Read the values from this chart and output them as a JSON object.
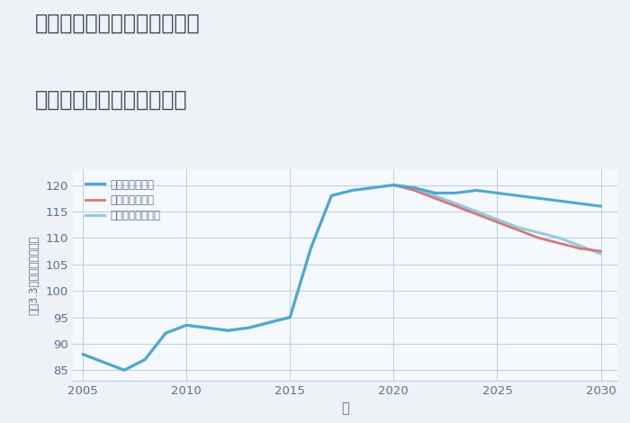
{
  "title_line1": "兵庫県姫路市野里東同心町の",
  "title_line2": "中古マンションの価格推移",
  "xlabel": "年",
  "ylabel": "坪（3.3㎡）単価（万円）",
  "background_color": "#eef2f7",
  "plot_bg_color": "#f5f8fc",
  "grid_color": "#b8cfe8",
  "title_color": "#3a4a5a",
  "tick_color": "#5a7090",
  "ylim": [
    83,
    123
  ],
  "xlim": [
    2004.5,
    2030.8
  ],
  "xticks": [
    2005,
    2010,
    2015,
    2020,
    2025,
    2030
  ],
  "yticks": [
    85,
    90,
    95,
    100,
    105,
    110,
    115,
    120
  ],
  "good_scenario": {
    "label": "グッドシナリオ",
    "color": "#4fa8d0",
    "linewidth": 2.2,
    "years": [
      2005,
      2006,
      2007,
      2008,
      2009,
      2010,
      2011,
      2012,
      2013,
      2014,
      2015,
      2016,
      2017,
      2018,
      2019,
      2020,
      2021,
      2022,
      2023,
      2024,
      2025,
      2026,
      2027,
      2028,
      2029,
      2030
    ],
    "values": [
      88.0,
      86.5,
      85.0,
      87.0,
      92.0,
      93.5,
      93.0,
      92.5,
      93.0,
      94.0,
      95.0,
      108.0,
      118.0,
      119.0,
      119.5,
      120.0,
      119.5,
      118.5,
      118.5,
      119.0,
      118.5,
      118.0,
      117.5,
      117.0,
      116.5,
      116.0
    ]
  },
  "bad_scenario": {
    "label": "バッドシナリオ",
    "color": "#d47878",
    "linewidth": 2.0,
    "years": [
      2020,
      2021,
      2022,
      2023,
      2024,
      2025,
      2026,
      2027,
      2028,
      2029,
      2030
    ],
    "values": [
      120.0,
      119.0,
      117.5,
      116.0,
      114.5,
      113.0,
      111.5,
      110.0,
      109.0,
      108.0,
      107.5
    ]
  },
  "normal_scenario": {
    "label": "ノーマルシナリオ",
    "color": "#90cce0",
    "linewidth": 2.2,
    "years": [
      2005,
      2006,
      2007,
      2008,
      2009,
      2010,
      2011,
      2012,
      2013,
      2014,
      2015,
      2016,
      2017,
      2018,
      2019,
      2020,
      2021,
      2022,
      2023,
      2024,
      2025,
      2026,
      2027,
      2028,
      2029,
      2030
    ],
    "values": [
      88.0,
      86.5,
      85.0,
      87.0,
      92.0,
      93.5,
      93.0,
      92.5,
      93.0,
      94.0,
      95.0,
      108.0,
      118.0,
      119.0,
      119.5,
      120.0,
      119.5,
      118.0,
      116.5,
      115.0,
      113.5,
      112.0,
      111.0,
      110.0,
      108.5,
      107.0
    ]
  }
}
